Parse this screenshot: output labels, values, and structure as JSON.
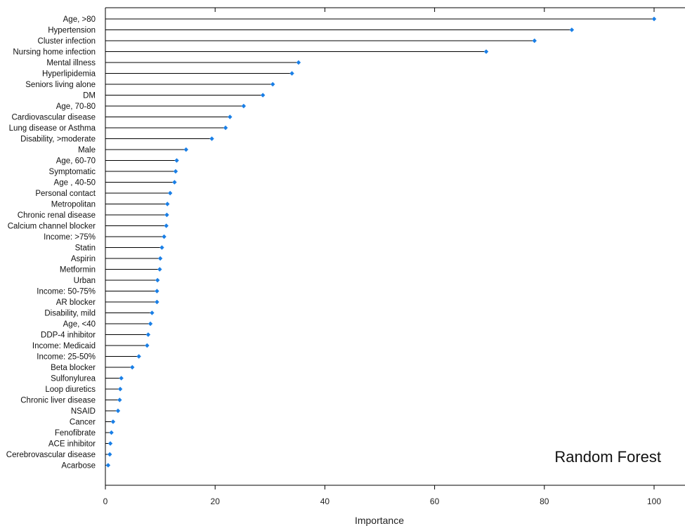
{
  "chart_data": {
    "type": "lollipop",
    "xlabel": "Importance",
    "xlim": [
      0,
      105
    ],
    "xticks": [
      0,
      20,
      40,
      60,
      80,
      100
    ],
    "annotation": "Random Forest",
    "marker_color": "#1a7fe6",
    "stem_color": "#000000",
    "grid": false,
    "categories": [
      "Age, >80",
      "Hypertension",
      "Cluster infection",
      "Nursing home infection",
      "Mental illness",
      "Hyperlipidemia",
      "Seniors living alone",
      "DM",
      "Age, 70-80",
      "Cardiovascular disease",
      "Lung disease or Asthma",
      "Disability, >moderate",
      "Male",
      "Age,  60-70",
      "Symptomatic",
      "Age , 40-50",
      "Personal contact",
      "Metropolitan",
      "Chronic renal disease",
      "Calcium channel blocker",
      "Income: >75%",
      "Statin",
      "Aspirin",
      "Metformin",
      "Urban",
      "Income: 50-75%",
      "AR blocker",
      "Disability, mild",
      "Age, <40",
      "DDP-4 inhibitor",
      "Income: Medicaid",
      "Income: 25-50%",
      "Beta blocker",
      "Sulfonylurea",
      "Loop diuretics",
      "Chronic liver disease",
      "NSAID",
      "Cancer",
      "Fenofibrate",
      "ACE inhibitor",
      "Cerebrovascular disease",
      "Acarbose"
    ],
    "values": [
      100,
      85,
      78.2,
      69.4,
      35.2,
      34.0,
      30.5,
      28.7,
      25.2,
      22.7,
      21.9,
      19.4,
      14.7,
      13.0,
      12.8,
      12.6,
      11.8,
      11.3,
      11.2,
      11.1,
      10.7,
      10.3,
      10.0,
      9.9,
      9.5,
      9.4,
      9.4,
      8.5,
      8.2,
      7.8,
      7.6,
      6.1,
      4.9,
      2.9,
      2.7,
      2.6,
      2.3,
      1.4,
      1.1,
      0.9,
      0.8,
      0.5
    ]
  }
}
